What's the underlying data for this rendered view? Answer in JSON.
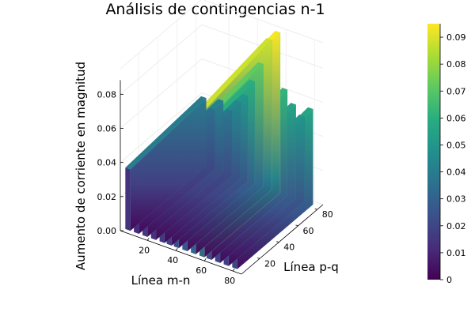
{
  "chart_data": {
    "type": "surface",
    "title": "Análisis de contingencias n-1",
    "xlabel": "Línea m-n",
    "ylabel": "Línea p-q",
    "zlabel": "Aumento de corriente en magnitud",
    "colormap": "viridis",
    "xlim": [
      1,
      86
    ],
    "ylim": [
      1,
      86
    ],
    "zlim": [
      0,
      0.095
    ],
    "x_ticks": [
      "20",
      "40",
      "60",
      "80"
    ],
    "y_ticks": [
      "20",
      "40",
      "60",
      "80"
    ],
    "z_ticks": [
      "0.00",
      "0.02",
      "0.04",
      "0.06",
      "0.08"
    ],
    "colorbar": {
      "range": [
        0,
        0.095
      ],
      "ticks": [
        "0",
        "0.01",
        "0.02",
        "0.03",
        "0.04",
        "0.05",
        "0.06",
        "0.07",
        "0.08",
        "0.09"
      ]
    },
    "ridges": [
      {
        "x": 6,
        "peak": 0.04
      },
      {
        "x": 12,
        "peak": 0.035
      },
      {
        "x": 18,
        "peak": 0.042
      },
      {
        "x": 24,
        "peak": 0.038
      },
      {
        "x": 30,
        "peak": 0.045
      },
      {
        "x": 35,
        "peak": 0.05
      },
      {
        "x": 40,
        "peak": 0.06
      },
      {
        "x": 46,
        "peak": 0.072
      },
      {
        "x": 52,
        "peak": 0.088
      },
      {
        "x": 58,
        "peak": 0.094
      },
      {
        "x": 63,
        "peak": 0.062
      },
      {
        "x": 69,
        "peak": 0.055
      },
      {
        "x": 75,
        "peak": 0.05
      },
      {
        "x": 81,
        "peak": 0.056
      }
    ]
  }
}
